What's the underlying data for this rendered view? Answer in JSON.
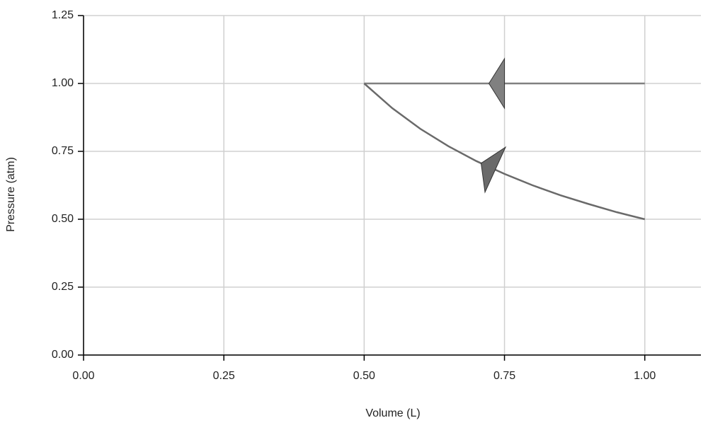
{
  "chart_data": {
    "type": "line",
    "xlabel": "Volume (L)",
    "ylabel": "Pressure (atm)",
    "xlim": [
      0,
      1.1
    ],
    "ylim": [
      0,
      1.25
    ],
    "xticks": [
      {
        "value": 0,
        "label": "0.00"
      },
      0.25,
      {
        "value": 0.5,
        "label": "0.50"
      },
      0.75,
      {
        "value": 1,
        "label": "1.00"
      }
    ],
    "yticks": [
      {
        "value": 0,
        "label": "0.00"
      },
      0.25,
      {
        "value": 0.5,
        "label": "0.50"
      },
      0.75,
      {
        "value": 1,
        "label": "1.00"
      },
      1.25
    ],
    "grid": true,
    "series": [
      {
        "color": "#808080",
        "x": [
          1.0,
          0.5
        ],
        "values": [
          1.0,
          1.0
        ]
      },
      {
        "color": "#6a6a6a",
        "x": [
          1.0,
          0.95,
          0.9,
          0.85,
          0.8,
          0.75,
          0.7,
          0.65,
          0.6,
          0.55,
          0.5
        ],
        "values": [
          0.5,
          0.526,
          0.556,
          0.588,
          0.625,
          0.667,
          0.714,
          0.769,
          0.833,
          0.909,
          1.0
        ]
      }
    ]
  }
}
